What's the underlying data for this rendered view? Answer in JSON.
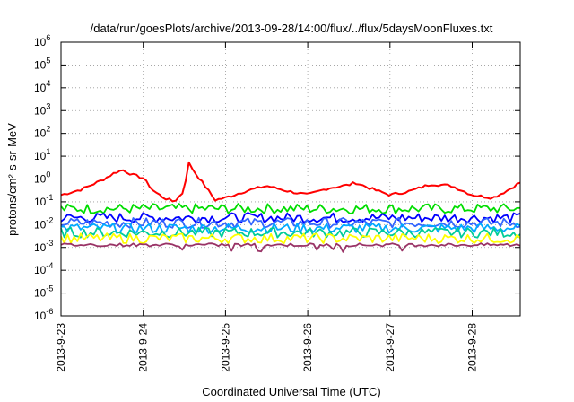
{
  "chart_data": {
    "type": "line",
    "title": "/data/run/goesPlots/archive/2013-09-28/14:00/flux/../flux/5daysMoonFluxes.txt",
    "xlabel": "Coordinated Universal Time (UTC)",
    "ylabel": "protons/cm²-s-sr-MeV",
    "y_scale": "log",
    "ylim": [
      1e-06,
      1000000.0
    ],
    "xlim": [
      "2013-09-23",
      "2013-09-28 14:00"
    ],
    "grid": true,
    "x_ticks": [
      "2013-9-23",
      "2013-9-24",
      "2013-9-25",
      "2013-9-26",
      "2013-9-27",
      "2013-9-28"
    ],
    "y_ticks": [
      {
        "base": "10",
        "exp": "-6"
      },
      {
        "base": "10",
        "exp": "-5"
      },
      {
        "base": "10",
        "exp": "-4"
      },
      {
        "base": "10",
        "exp": "-3"
      },
      {
        "base": "10",
        "exp": "-2"
      },
      {
        "base": "10",
        "exp": "-1"
      },
      {
        "base": "10",
        "exp": "0"
      },
      {
        "base": "10",
        "exp": "1"
      },
      {
        "base": "10",
        "exp": "2"
      },
      {
        "base": "10",
        "exp": "3"
      },
      {
        "base": "10",
        "exp": "4"
      },
      {
        "base": "10",
        "exp": "5"
      },
      {
        "base": "10",
        "exp": "6"
      }
    ],
    "series": [
      {
        "color": "#ff0000",
        "x": [
          "2013-09-23 00:00",
          "2013-09-23 06:00",
          "2013-09-23 12:00",
          "2013-09-23 16:00",
          "2013-09-23 18:00",
          "2013-09-23 21:00",
          "2013-09-24 00:00",
          "2013-09-24 03:00",
          "2013-09-24 06:00",
          "2013-09-24 09:00",
          "2013-09-24 12:00",
          "2013-09-24 13:00",
          "2013-09-24 15:00",
          "2013-09-24 18:00",
          "2013-09-24 21:00",
          "2013-09-25 00:00",
          "2013-09-25 06:00",
          "2013-09-25 12:00",
          "2013-09-25 18:00",
          "2013-09-26 00:00",
          "2013-09-26 06:00",
          "2013-09-26 12:00",
          "2013-09-26 14:00",
          "2013-09-26 18:00",
          "2013-09-27 00:00",
          "2013-09-27 06:00",
          "2013-09-27 12:00",
          "2013-09-27 18:00",
          "2013-09-28 00:00",
          "2013-09-28 06:00",
          "2013-09-28 10:00",
          "2013-09-28 14:00"
        ],
        "values": [
          0.2,
          0.35,
          0.9,
          2.0,
          2.5,
          1.5,
          1.1,
          0.3,
          0.15,
          0.1,
          0.3,
          6.0,
          2.0,
          0.5,
          0.12,
          0.15,
          0.3,
          0.5,
          0.3,
          0.2,
          0.4,
          0.55,
          0.7,
          0.4,
          0.2,
          0.3,
          0.6,
          0.5,
          0.2,
          0.15,
          0.3,
          0.7
        ]
      },
      {
        "color": "#00dd00",
        "x": [
          "2013-09-23 00:00",
          "2013-09-28 14:00"
        ],
        "values": [
          0.05,
          0.05
        ]
      },
      {
        "color": "#0000ff",
        "x": [
          "2013-09-23 00:00",
          "2013-09-28 14:00"
        ],
        "values": [
          0.02,
          0.02
        ]
      },
      {
        "color": "#3366ff",
        "x": [
          "2013-09-23 00:00",
          "2013-09-28 14:00"
        ],
        "values": [
          0.012,
          0.012
        ]
      },
      {
        "color": "#00aaff",
        "x": [
          "2013-09-23 00:00",
          "2013-09-28 14:00"
        ],
        "values": [
          0.007,
          0.007
        ]
      },
      {
        "color": "#00cc99",
        "x": [
          "2013-09-23 00:00",
          "2013-09-28 14:00"
        ],
        "values": [
          0.0045,
          0.0045
        ]
      },
      {
        "color": "#ffff00",
        "x": [
          "2013-09-23 00:00",
          "2013-09-28 14:00"
        ],
        "values": [
          0.0025,
          0.0025
        ]
      },
      {
        "color": "#993366",
        "x": [
          "2013-09-23 00:00",
          "2013-09-28 14:00"
        ],
        "values": [
          0.0013,
          0.0013
        ]
      }
    ]
  }
}
